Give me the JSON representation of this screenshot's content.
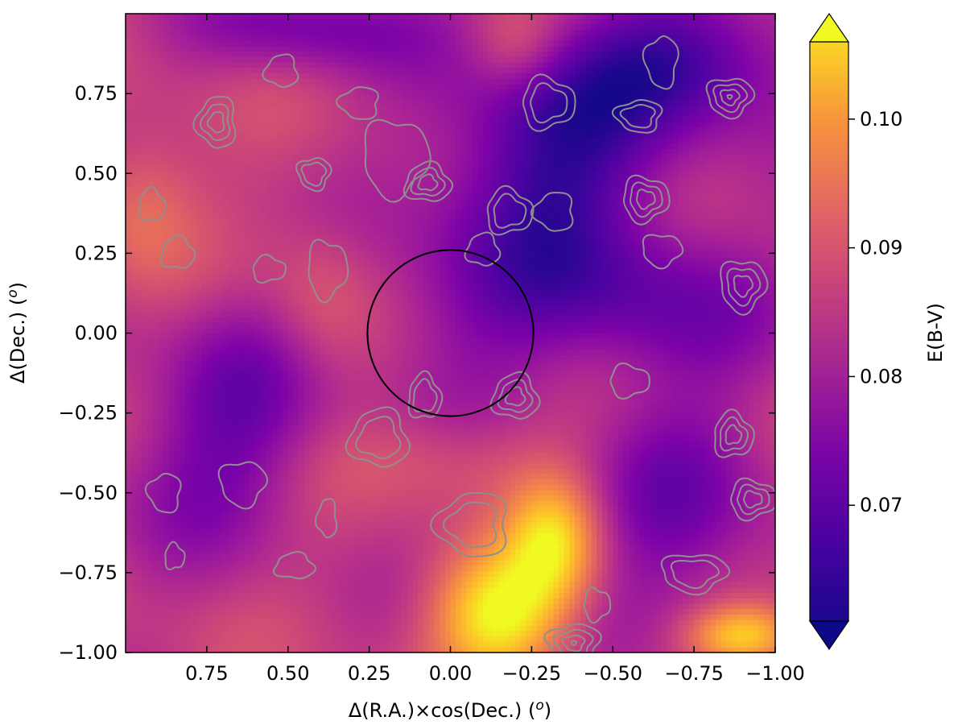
{
  "chart_data": {
    "type": "heatmap",
    "title": "",
    "xlabel": "Δ(R.A.)×cos(Dec.) (",
    "xlabel_unit": "o",
    "xlabel_end": ")",
    "ylabel": "Δ(Dec.) (",
    "ylabel_unit": "o",
    "ylabel_end": ")",
    "xlim": [
      1.0,
      -1.0
    ],
    "ylim": [
      -1.0,
      1.0
    ],
    "x_inverted": true,
    "x_ticks": [
      0.75,
      0.5,
      0.25,
      0.0,
      -0.25,
      -0.5,
      -0.75,
      -1.0
    ],
    "x_tick_labels": [
      "0.75",
      "0.50",
      "0.25",
      "0.00",
      "−0.25",
      "−0.50",
      "−0.75",
      "−1.00"
    ],
    "y_ticks": [
      0.75,
      0.5,
      0.25,
      0.0,
      -0.25,
      -0.5,
      -0.75,
      -1.0
    ],
    "y_tick_labels": [
      "0.75",
      "0.50",
      "0.25",
      "0.00",
      "−0.25",
      "−0.50",
      "−0.75",
      "−1.00"
    ],
    "colorbar": {
      "label": "E(B-V)",
      "colormap": "plasma",
      "vmin": 0.061,
      "vmax": 0.106,
      "ticks": [
        0.07,
        0.08,
        0.09,
        0.1
      ],
      "tick_labels": [
        "0.07",
        "0.08",
        "0.09",
        "0.10"
      ],
      "extend": "both"
    },
    "field_values": {
      "base": 0.082,
      "features": [
        {
          "x": -0.3,
          "y": 0.55,
          "sx": 0.25,
          "sy": 0.28,
          "amp": -0.017
        },
        {
          "x": -0.75,
          "y": 0.85,
          "sx": 0.25,
          "sy": 0.16,
          "amp": -0.015
        },
        {
          "x": 0.45,
          "y": 0.95,
          "sx": 0.25,
          "sy": 0.1,
          "amp": -0.01
        },
        {
          "x": -0.6,
          "y": 0.1,
          "sx": 0.3,
          "sy": 0.18,
          "amp": -0.01
        },
        {
          "x": 0.0,
          "y": 0.05,
          "sx": 0.22,
          "sy": 0.22,
          "amp": -0.006
        },
        {
          "x": 0.65,
          "y": -0.15,
          "sx": 0.2,
          "sy": 0.22,
          "amp": -0.008
        },
        {
          "x": 0.75,
          "y": -0.45,
          "sx": 0.22,
          "sy": 0.2,
          "amp": -0.007
        },
        {
          "x": -0.7,
          "y": -0.55,
          "sx": 0.22,
          "sy": 0.28,
          "amp": -0.01
        },
        {
          "x": -0.15,
          "y": -0.88,
          "sx": 0.14,
          "sy": 0.14,
          "amp": 0.024
        },
        {
          "x": -0.32,
          "y": -0.65,
          "sx": 0.1,
          "sy": 0.14,
          "amp": 0.02
        },
        {
          "x": -0.9,
          "y": -0.95,
          "sx": 0.12,
          "sy": 0.07,
          "amp": 0.02
        },
        {
          "x": 0.95,
          "y": 0.4,
          "sx": 0.12,
          "sy": 0.18,
          "amp": 0.008
        },
        {
          "x": 0.4,
          "y": 0.1,
          "sx": 0.12,
          "sy": 0.18,
          "amp": 0.006
        },
        {
          "x": -0.2,
          "y": 0.9,
          "sx": 0.1,
          "sy": 0.1,
          "amp": 0.008
        },
        {
          "x": 0.0,
          "y": -0.4,
          "sx": 0.25,
          "sy": 0.1,
          "amp": 0.005
        }
      ]
    },
    "contours": {
      "color": "#8f8f8f",
      "shapes": [
        {
          "x": 0.07,
          "y": 0.47,
          "rx": 0.07,
          "ry": 0.06,
          "levels": 3
        },
        {
          "x": -0.18,
          "y": 0.38,
          "rx": 0.07,
          "ry": 0.07,
          "levels": 2
        },
        {
          "x": -0.6,
          "y": 0.42,
          "rx": 0.07,
          "ry": 0.07,
          "levels": 3
        },
        {
          "x": -0.86,
          "y": 0.74,
          "rx": 0.07,
          "ry": 0.06,
          "levels": 4
        },
        {
          "x": -0.58,
          "y": 0.68,
          "rx": 0.07,
          "ry": 0.05,
          "levels": 2
        },
        {
          "x": 0.72,
          "y": 0.66,
          "rx": 0.06,
          "ry": 0.08,
          "levels": 3
        },
        {
          "x": -0.2,
          "y": -0.2,
          "rx": 0.07,
          "ry": 0.07,
          "levels": 3
        },
        {
          "x": -0.87,
          "y": -0.32,
          "rx": 0.06,
          "ry": 0.07,
          "levels": 3
        },
        {
          "x": -0.93,
          "y": -0.52,
          "rx": 0.07,
          "ry": 0.06,
          "levels": 3
        },
        {
          "x": -0.9,
          "y": 0.15,
          "rx": 0.07,
          "ry": 0.08,
          "levels": 3
        },
        {
          "x": -0.38,
          "y": -0.97,
          "rx": 0.08,
          "ry": 0.06,
          "levels": 4
        },
        {
          "x": -0.07,
          "y": -0.6,
          "rx": 0.11,
          "ry": 0.1,
          "levels": 2
        },
        {
          "x": 0.22,
          "y": -0.33,
          "rx": 0.09,
          "ry": 0.09,
          "levels": 2
        },
        {
          "x": 0.08,
          "y": -0.2,
          "rx": 0.05,
          "ry": 0.07,
          "levels": 2
        },
        {
          "x": -0.3,
          "y": 0.72,
          "rx": 0.08,
          "ry": 0.08,
          "levels": 2
        },
        {
          "x": 0.17,
          "y": 0.55,
          "rx": 0.1,
          "ry": 0.12,
          "levels": 1
        },
        {
          "x": 0.42,
          "y": 0.5,
          "rx": 0.05,
          "ry": 0.05,
          "levels": 2
        },
        {
          "x": 0.28,
          "y": 0.72,
          "rx": 0.06,
          "ry": 0.05,
          "levels": 1
        },
        {
          "x": 0.52,
          "y": 0.82,
          "rx": 0.05,
          "ry": 0.05,
          "levels": 1
        },
        {
          "x": 0.84,
          "y": 0.25,
          "rx": 0.05,
          "ry": 0.05,
          "levels": 1
        },
        {
          "x": 0.56,
          "y": 0.2,
          "rx": 0.05,
          "ry": 0.04,
          "levels": 1
        },
        {
          "x": 0.38,
          "y": 0.2,
          "rx": 0.06,
          "ry": 0.09,
          "levels": 1
        },
        {
          "x": 0.64,
          "y": -0.47,
          "rx": 0.07,
          "ry": 0.07,
          "levels": 1
        },
        {
          "x": 0.88,
          "y": -0.5,
          "rx": 0.05,
          "ry": 0.06,
          "levels": 1
        },
        {
          "x": 0.38,
          "y": -0.58,
          "rx": 0.03,
          "ry": 0.06,
          "levels": 1
        },
        {
          "x": 0.48,
          "y": -0.73,
          "rx": 0.06,
          "ry": 0.04,
          "levels": 1
        },
        {
          "x": 0.85,
          "y": -0.7,
          "rx": 0.03,
          "ry": 0.04,
          "levels": 1
        },
        {
          "x": -0.45,
          "y": -0.85,
          "rx": 0.04,
          "ry": 0.05,
          "levels": 1
        },
        {
          "x": -0.75,
          "y": -0.75,
          "rx": 0.1,
          "ry": 0.06,
          "levels": 2
        },
        {
          "x": -0.65,
          "y": 0.85,
          "rx": 0.05,
          "ry": 0.08,
          "levels": 1
        },
        {
          "x": -0.32,
          "y": 0.38,
          "rx": 0.06,
          "ry": 0.06,
          "levels": 1
        },
        {
          "x": -0.1,
          "y": 0.26,
          "rx": 0.05,
          "ry": 0.05,
          "levels": 1
        },
        {
          "x": 0.92,
          "y": 0.4,
          "rx": 0.04,
          "ry": 0.05,
          "levels": 1
        },
        {
          "x": -0.55,
          "y": -0.15,
          "rx": 0.06,
          "ry": 0.05,
          "levels": 1
        },
        {
          "x": -0.65,
          "y": 0.26,
          "rx": 0.06,
          "ry": 0.05,
          "levels": 1
        }
      ]
    },
    "circle": {
      "x": 0.0,
      "y": 0.0,
      "r": 0.26,
      "color": "#000000"
    }
  }
}
